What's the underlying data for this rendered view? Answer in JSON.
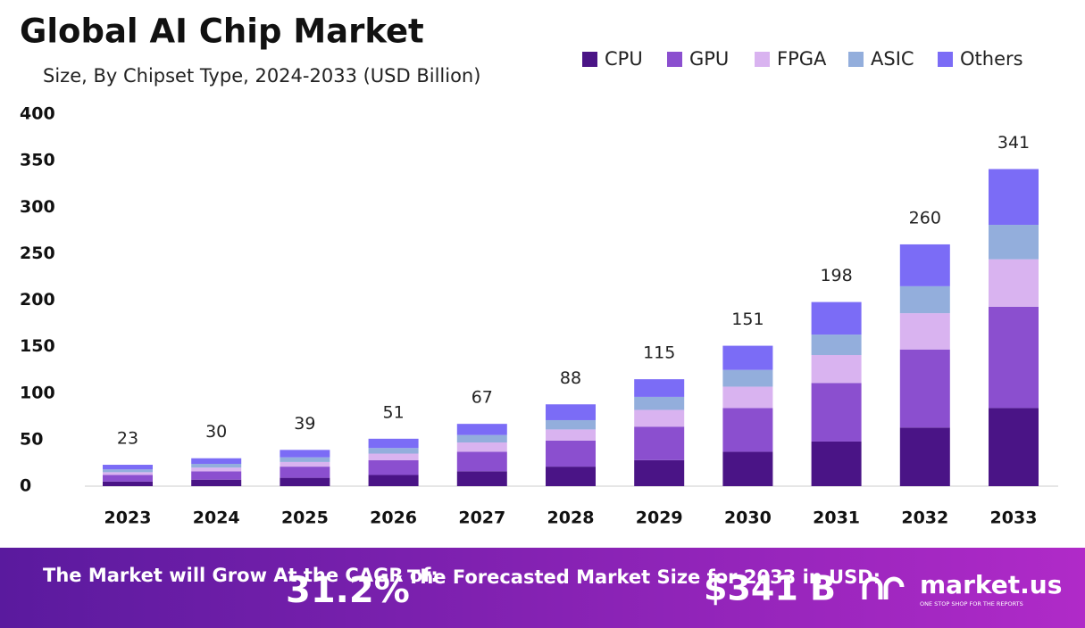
{
  "chart_data": {
    "type": "stacked-bar",
    "title": "Global AI Chip Market",
    "subtitle": "Size, By Chipset Type, 2024-2033 (USD Billion)",
    "categories": [
      "2023",
      "2024",
      "2025",
      "2026",
      "2027",
      "2028",
      "2029",
      "2030",
      "2031",
      "2032",
      "2033"
    ],
    "series": [
      {
        "name": "CPU",
        "color": "#4a1486",
        "values": [
          5,
          7,
          9,
          12,
          16,
          21,
          28,
          37,
          48,
          63,
          84
        ]
      },
      {
        "name": "GPU",
        "color": "#8b4fcf",
        "values": [
          7,
          9,
          12,
          16,
          21,
          28,
          36,
          47,
          63,
          84,
          109
        ]
      },
      {
        "name": "FPGA",
        "color": "#d9b3f0",
        "values": [
          3,
          4,
          5,
          7,
          10,
          12,
          18,
          23,
          30,
          39,
          51
        ]
      },
      {
        "name": "ASIC",
        "color": "#93aedc",
        "values": [
          3,
          4,
          5,
          6,
          8,
          10,
          14,
          18,
          22,
          29,
          37
        ]
      },
      {
        "name": "Others",
        "color": "#7b6cf6",
        "values": [
          5,
          6,
          8,
          10,
          12,
          17,
          19,
          26,
          35,
          45,
          60
        ]
      }
    ],
    "totals": [
      23,
      30,
      39,
      51,
      67,
      88,
      115,
      151,
      198,
      260,
      341
    ],
    "ylim": [
      0,
      400
    ],
    "yticks": [
      0,
      50,
      100,
      150,
      200,
      250,
      300,
      350,
      400
    ],
    "grid": false
  },
  "footer": {
    "cagr_text": "The Market will Grow At the CAGR of:",
    "cagr": "31.2%",
    "forecast_text": "The Forecasted Market Size for 2033 in USD:",
    "forecast": "$341 B",
    "brand": "market.us",
    "tagline": "ONE STOP SHOP FOR THE REPORTS"
  }
}
